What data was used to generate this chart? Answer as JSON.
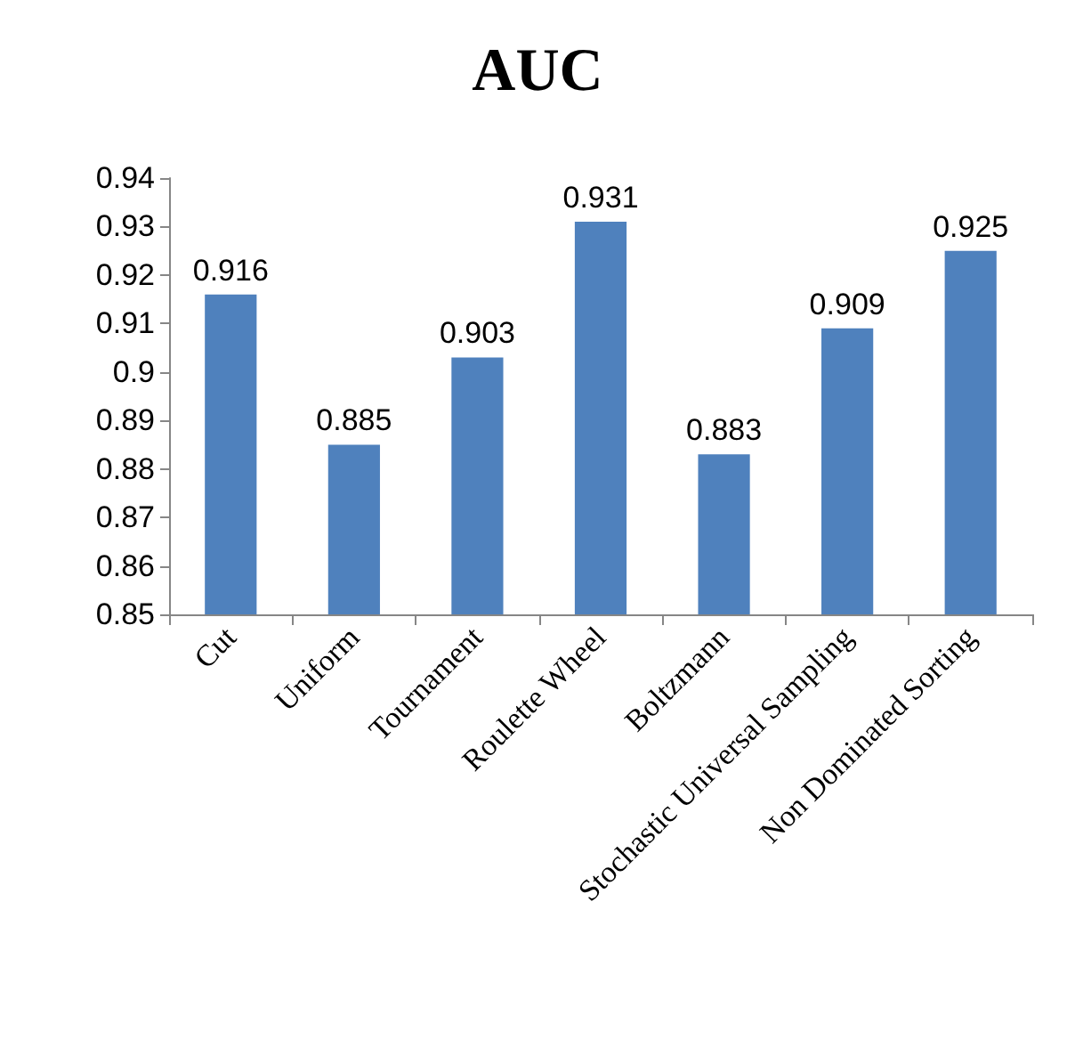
{
  "chart_data": {
    "type": "bar",
    "title": "AUC",
    "categories": [
      "Cut",
      "Uniform",
      "Tournament",
      "Roulette Wheel",
      "Boltzmann",
      "Stochastic Universal Sampling",
      "Non Dominated Sorting"
    ],
    "values": [
      0.916,
      0.885,
      0.903,
      0.931,
      0.883,
      0.909,
      0.925
    ],
    "color": "#4f81bd",
    "ylim": [
      0.85,
      0.94
    ],
    "yticks": [
      0.85,
      0.86,
      0.87,
      0.88,
      0.89,
      0.9,
      0.91,
      0.92,
      0.93,
      0.94
    ],
    "data_labels": true
  }
}
